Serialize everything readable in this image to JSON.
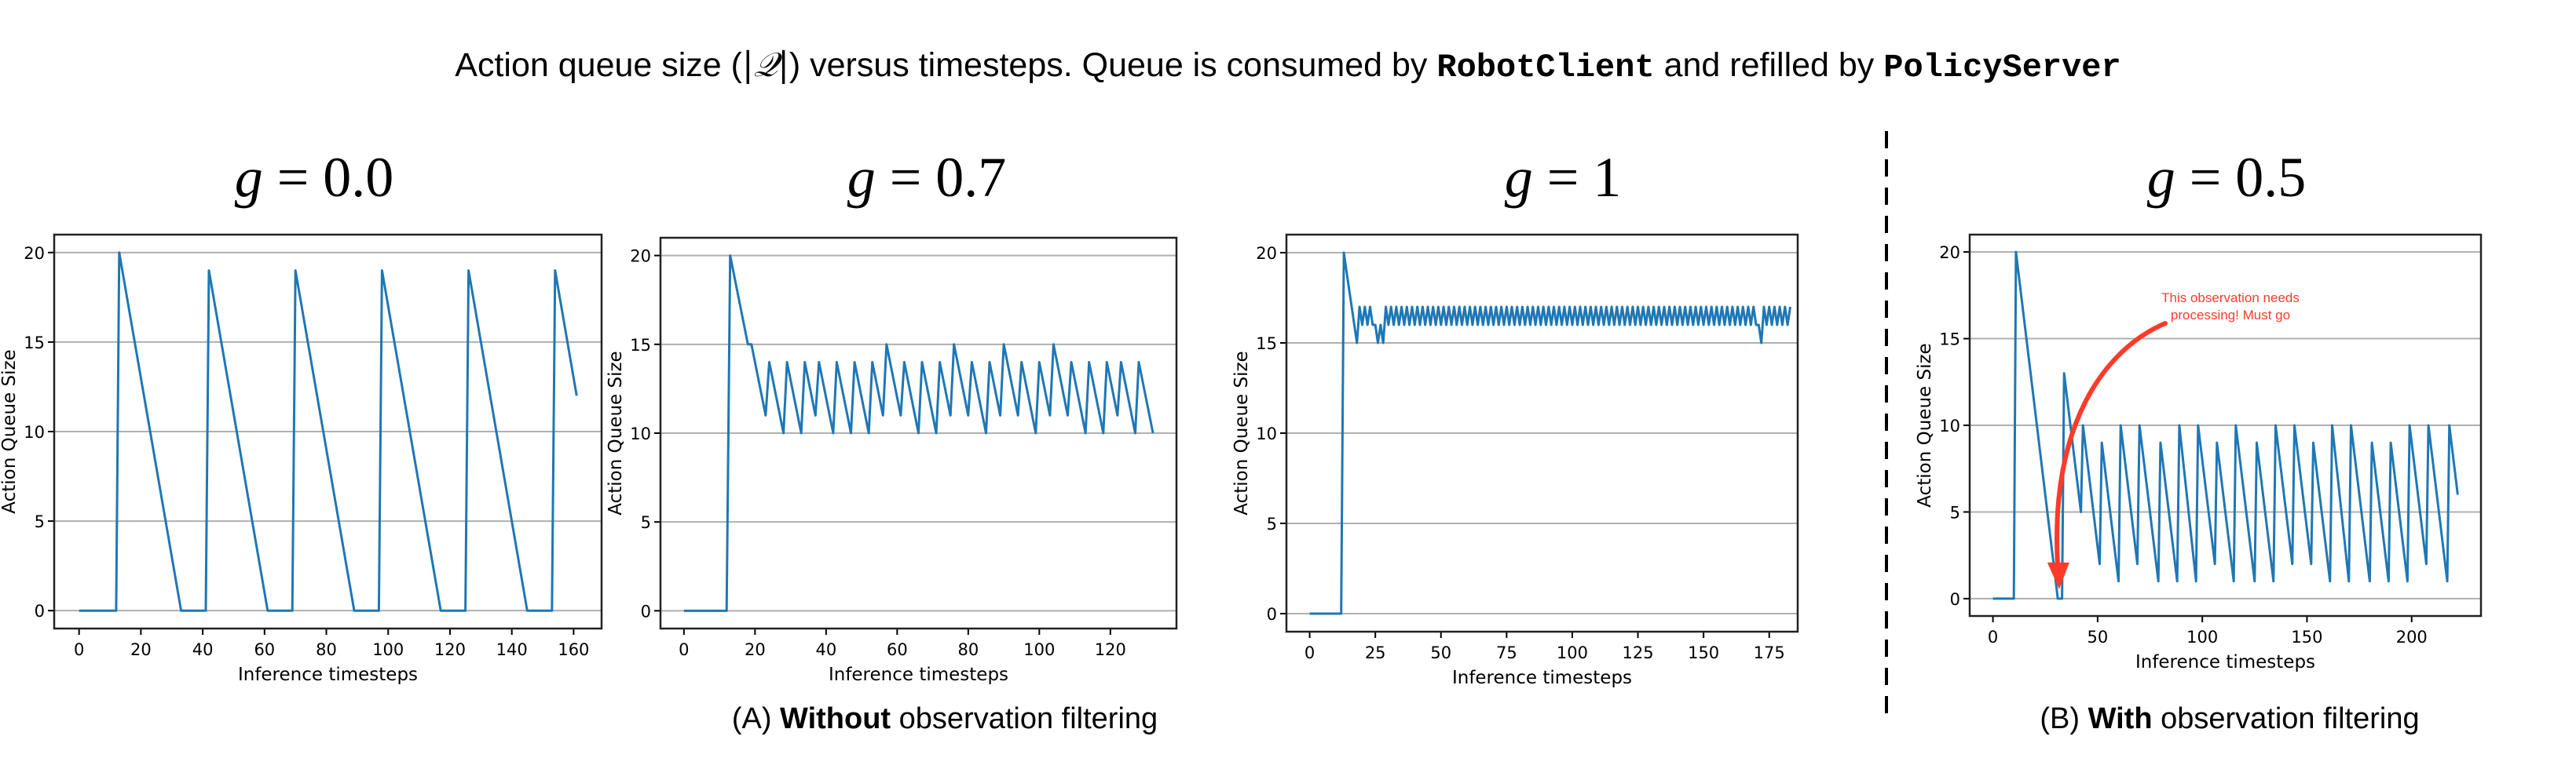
{
  "header": {
    "title_prefix": "Action queue size (",
    "title_math": "|𝒬|",
    "title_mid": ") versus timesteps. Queue is consumed by ",
    "title_code1": "RobotClient",
    "title_mid2": " and refilled by ",
    "title_code2": "PolicyServer"
  },
  "panels": [
    {
      "var": "g",
      "rest": " = 0.0"
    },
    {
      "var": "g",
      "rest": " = 0.7"
    },
    {
      "var": "g",
      "rest": " = 1"
    },
    {
      "var": "g",
      "rest": " = 0.5"
    }
  ],
  "captions": {
    "a_prefix": "(A) ",
    "a_bold": "Without",
    "a_suffix": " observation filtering",
    "b_prefix": "(B) ",
    "b_bold": "With",
    "b_suffix": " observation filtering"
  },
  "colors": {
    "line": "#1f77b4",
    "grid": "#b0b0b0",
    "annotation": "#ff3a2a",
    "divider": "#000000"
  },
  "chart_data": [
    {
      "type": "line",
      "title": "g = 0.0",
      "xlabel": "Inference timesteps",
      "ylabel": "Action Queue Size",
      "xticks": [
        0,
        20,
        40,
        60,
        80,
        100,
        120,
        140,
        160
      ],
      "yticks": [
        0,
        5,
        10,
        15,
        20
      ],
      "xlim": [
        -8.05,
        169.05
      ],
      "ylim": [
        -1,
        21
      ],
      "grid": "y",
      "x": [
        0,
        12,
        13,
        33,
        41,
        42,
        61,
        69,
        70,
        89,
        97,
        98,
        117,
        125,
        126,
        145,
        153,
        154,
        161
      ],
      "y": [
        0,
        0,
        20,
        0,
        0,
        19,
        0,
        0,
        19,
        0,
        0,
        19,
        0,
        0,
        19,
        0,
        0,
        19,
        12
      ]
    },
    {
      "type": "line",
      "title": "g = 0.7",
      "xlabel": "Inference timesteps",
      "ylabel": "Action Queue Size",
      "xticks": [
        0,
        20,
        40,
        60,
        80,
        100,
        120
      ],
      "yticks": [
        0,
        5,
        10,
        15,
        20
      ],
      "xlim": [
        -6.6,
        138.6
      ],
      "ylim": [
        -1,
        21
      ],
      "grid": "y",
      "x": [
        0,
        12,
        13,
        18,
        19,
        23,
        24,
        28,
        29,
        33,
        34,
        37,
        38,
        42,
        43,
        47,
        48,
        52,
        53,
        56,
        57,
        61,
        62,
        66,
        67,
        71,
        72,
        75,
        76,
        80,
        81,
        85,
        86,
        89,
        90,
        94,
        95,
        99,
        100,
        103,
        104,
        108,
        109,
        113,
        114,
        118,
        119,
        122,
        123,
        127,
        128,
        132
      ],
      "y": [
        0,
        0,
        20,
        15,
        15,
        11,
        14,
        10,
        14,
        10,
        14,
        11,
        14,
        10,
        14,
        10,
        14,
        10,
        14,
        11,
        15,
        11,
        14,
        10,
        14,
        10,
        14,
        11,
        15,
        11,
        14,
        10,
        14,
        11,
        15,
        11,
        14,
        10,
        14,
        11,
        15,
        11,
        14,
        10,
        14,
        10,
        14,
        11,
        14,
        10,
        14,
        10
      ]
    },
    {
      "type": "line",
      "title": "g = 1",
      "xlabel": "Inference timesteps",
      "ylabel": "Action Queue Size",
      "xticks": [
        0,
        25,
        50,
        75,
        100,
        125,
        150,
        175
      ],
      "yticks": [
        0,
        5,
        10,
        15,
        20
      ],
      "xlim": [
        -8.85,
        185.85
      ],
      "ylim": [
        -1,
        21
      ],
      "grid": "y",
      "y": [
        0,
        0,
        0,
        0,
        0,
        0,
        0,
        0,
        0,
        0,
        0,
        0,
        0,
        20,
        19,
        18,
        17,
        16,
        15,
        17,
        16,
        17,
        16,
        17,
        16,
        16,
        15,
        16,
        15,
        17,
        16,
        17,
        16,
        17,
        16,
        17,
        16,
        17,
        16,
        17,
        16,
        17,
        16,
        17,
        16,
        17,
        16,
        17,
        16,
        17,
        16,
        17,
        16,
        17,
        16,
        17,
        16,
        17,
        16,
        17,
        16,
        17,
        16,
        17,
        16,
        17,
        16,
        17,
        16,
        17,
        16,
        17,
        16,
        17,
        16,
        17,
        16,
        17,
        16,
        17,
        16,
        17,
        16,
        17,
        16,
        17,
        16,
        17,
        16,
        17,
        16,
        17,
        16,
        17,
        16,
        17,
        16,
        17,
        16,
        17,
        16,
        17,
        16,
        17,
        16,
        17,
        16,
        17,
        16,
        17,
        16,
        17,
        16,
        17,
        16,
        17,
        16,
        17,
        16,
        17,
        16,
        17,
        16,
        17,
        16,
        17,
        16,
        17,
        16,
        17,
        16,
        17,
        16,
        17,
        16,
        17,
        16,
        17,
        16,
        17,
        16,
        17,
        16,
        17,
        16,
        17,
        16,
        17,
        16,
        17,
        16,
        17,
        16,
        17,
        16,
        17,
        16,
        17,
        16,
        17,
        16,
        17,
        16,
        17,
        16,
        17,
        16,
        17,
        16,
        17,
        16,
        16,
        15,
        17,
        16,
        17,
        16,
        17,
        16,
        17,
        16,
        17,
        16,
        17
      ]
    },
    {
      "type": "line",
      "title": "g = 0.5",
      "xlabel": "Inference timesteps",
      "ylabel": "Action Queue Size",
      "xticks": [
        0,
        50,
        100,
        150,
        200
      ],
      "yticks": [
        0,
        5,
        10,
        15,
        20
      ],
      "xlim": [
        -11.1,
        233.1
      ],
      "ylim": [
        -1,
        21
      ],
      "grid": "y",
      "x": [
        0,
        10,
        11,
        31,
        33,
        34,
        42,
        43,
        51,
        52,
        60,
        61,
        69,
        70,
        79,
        80,
        88,
        89,
        97,
        98,
        106,
        107,
        115,
        116,
        125,
        126,
        134,
        135,
        143,
        144,
        152,
        153,
        161,
        162,
        170,
        171,
        180,
        181,
        189,
        190,
        198,
        199,
        207,
        208,
        217,
        218,
        222
      ],
      "y": [
        0,
        0,
        20,
        0,
        0,
        13,
        5,
        10,
        2,
        9,
        1,
        10,
        2,
        10,
        1,
        9,
        1,
        10,
        1,
        10,
        2,
        9,
        1,
        10,
        1,
        9,
        1,
        10,
        2,
        10,
        2,
        9,
        1,
        10,
        1,
        10,
        1,
        9,
        1,
        9,
        1,
        10,
        2,
        10,
        1,
        10,
        6
      ],
      "annotation": {
        "text_line1": "This observation  needs",
        "text_line2": "processing! Must go",
        "points_to": [
          32,
          0
        ]
      }
    }
  ]
}
